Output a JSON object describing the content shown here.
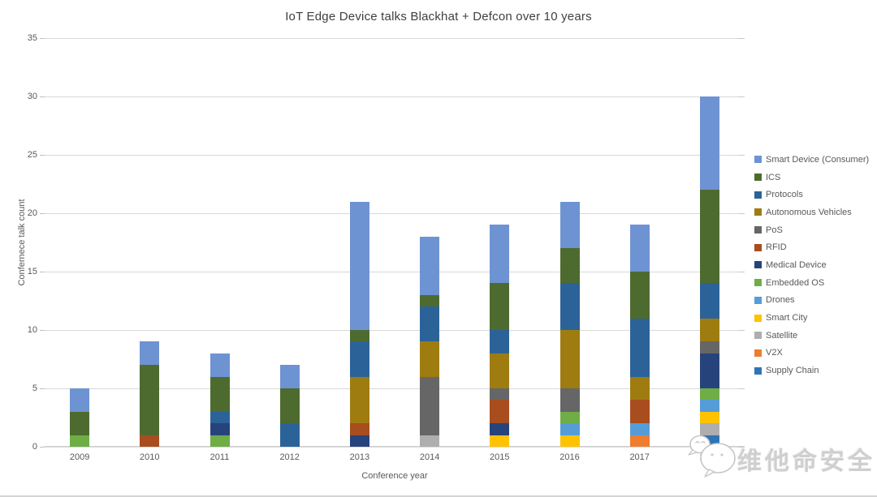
{
  "chart_data": {
    "type": "bar",
    "stacked": true,
    "title": "IoT Edge Device talks Blackhat + Defcon over 10 years",
    "xlabel": "Conference year",
    "ylabel": "Confernece talk count",
    "ylim": [
      0,
      35
    ],
    "yticks": [
      0,
      5,
      10,
      15,
      20,
      25,
      30,
      35
    ],
    "grid": true,
    "legend_position": "right",
    "stack_bottom": "last series in legend order is at the bottom of each bar",
    "categories": [
      "2009",
      "2010",
      "2011",
      "2012",
      "2013",
      "2014",
      "2015",
      "2016",
      "2017",
      "2018"
    ],
    "series": [
      {
        "name": "Smart Device (Consumer)",
        "color": "#6e93d2",
        "values": [
          2,
          2,
          2,
          2,
          11,
          5,
          5,
          4,
          4,
          8
        ]
      },
      {
        "name": "ICS",
        "color": "#4e6b2f",
        "values": [
          2,
          6,
          3,
          3,
          1,
          1,
          4,
          3,
          4,
          8
        ]
      },
      {
        "name": "Protocols",
        "color": "#2b6399",
        "values": [
          0,
          0,
          1,
          2,
          3,
          3,
          2,
          4,
          5,
          3
        ]
      },
      {
        "name": "Autonomous Vehicles",
        "color": "#9e7c10",
        "values": [
          0,
          0,
          0,
          0,
          4,
          3,
          3,
          5,
          2,
          2
        ]
      },
      {
        "name": "PoS",
        "color": "#666666",
        "values": [
          0,
          0,
          0,
          0,
          0,
          5,
          1,
          2,
          0,
          1
        ]
      },
      {
        "name": "RFID",
        "color": "#a84d1e",
        "values": [
          0,
          1,
          0,
          0,
          1,
          0,
          2,
          0,
          2,
          0
        ]
      },
      {
        "name": "Medical Device",
        "color": "#27437b",
        "values": [
          0,
          0,
          1,
          0,
          1,
          0,
          1,
          0,
          0,
          3
        ]
      },
      {
        "name": "Embedded OS",
        "color": "#6fad47",
        "values": [
          1,
          0,
          1,
          0,
          0,
          0,
          0,
          1,
          0,
          1
        ]
      },
      {
        "name": "Drones",
        "color": "#569dd8",
        "values": [
          0,
          0,
          0,
          0,
          0,
          0,
          0,
          1,
          1,
          1
        ]
      },
      {
        "name": "Smart City",
        "color": "#fec200",
        "values": [
          0,
          0,
          0,
          0,
          0,
          0,
          1,
          1,
          0,
          1
        ]
      },
      {
        "name": "Satellite",
        "color": "#aeaeae",
        "values": [
          0,
          0,
          0,
          0,
          0,
          1,
          0,
          0,
          0,
          1
        ]
      },
      {
        "name": "V2X",
        "color": "#ed7d31",
        "values": [
          0,
          0,
          0,
          0,
          0,
          0,
          0,
          0,
          1,
          0
        ]
      },
      {
        "name": "Supply Chain",
        "color": "#2e75b6",
        "values": [
          0,
          0,
          0,
          0,
          0,
          0,
          0,
          0,
          0,
          1
        ]
      }
    ],
    "totals_by_year": [
      5,
      9,
      8,
      7,
      21,
      18,
      19,
      21,
      19,
      30
    ]
  },
  "watermark": {
    "text": "维他命安全"
  }
}
